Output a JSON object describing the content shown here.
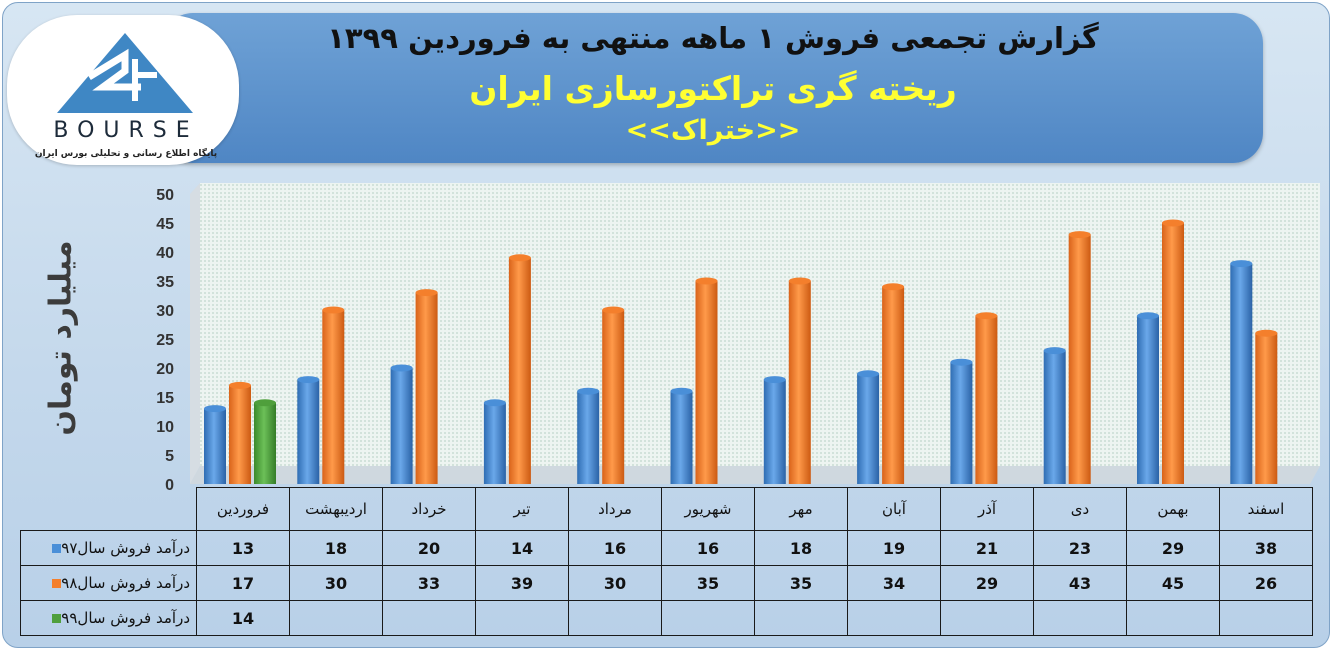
{
  "header": {
    "title_line1": "گزارش تجمعی فروش ۱ ماهه منتهی به فروردین ۱۳۹۹",
    "title_line2": "ریخته گری تراکتورسازی ایران",
    "title_line3": "<<ختراک>>"
  },
  "logo": {
    "word": "BOURSE",
    "subtitle": "پایگاه اطلاع رسانی و تحلیلی بورس ایران"
  },
  "colors": {
    "series_97": "#4a8fd8",
    "series_98": "#f47f2c",
    "series_99": "#4f9f3c",
    "plot_background": "#eaf2ef"
  },
  "chart_data": {
    "type": "bar",
    "ylabel": "میلیارد تومان",
    "ylim": [
      0,
      50
    ],
    "yticks": [
      0,
      5,
      10,
      15,
      20,
      25,
      30,
      35,
      40,
      45,
      50
    ],
    "grid": false,
    "legend": "table-rows",
    "categories": [
      "فروردین",
      "اردیبهشت",
      "خرداد",
      "تیر",
      "مرداد",
      "شهریور",
      "مهر",
      "آبان",
      "آذر",
      "دی",
      "بهمن",
      "اسفند"
    ],
    "series": [
      {
        "name": "درآمد فروش سال۹۷",
        "values": [
          13,
          18,
          20,
          14,
          16,
          16,
          18,
          19,
          21,
          23,
          29,
          38
        ]
      },
      {
        "name": "درآمد فروش سال۹۸",
        "values": [
          17,
          30,
          33,
          39,
          30,
          35,
          35,
          34,
          29,
          43,
          45,
          26
        ]
      },
      {
        "name": "درآمد فروش سال۹۹",
        "values": [
          14,
          null,
          null,
          null,
          null,
          null,
          null,
          null,
          null,
          null,
          null,
          null
        ]
      }
    ]
  }
}
